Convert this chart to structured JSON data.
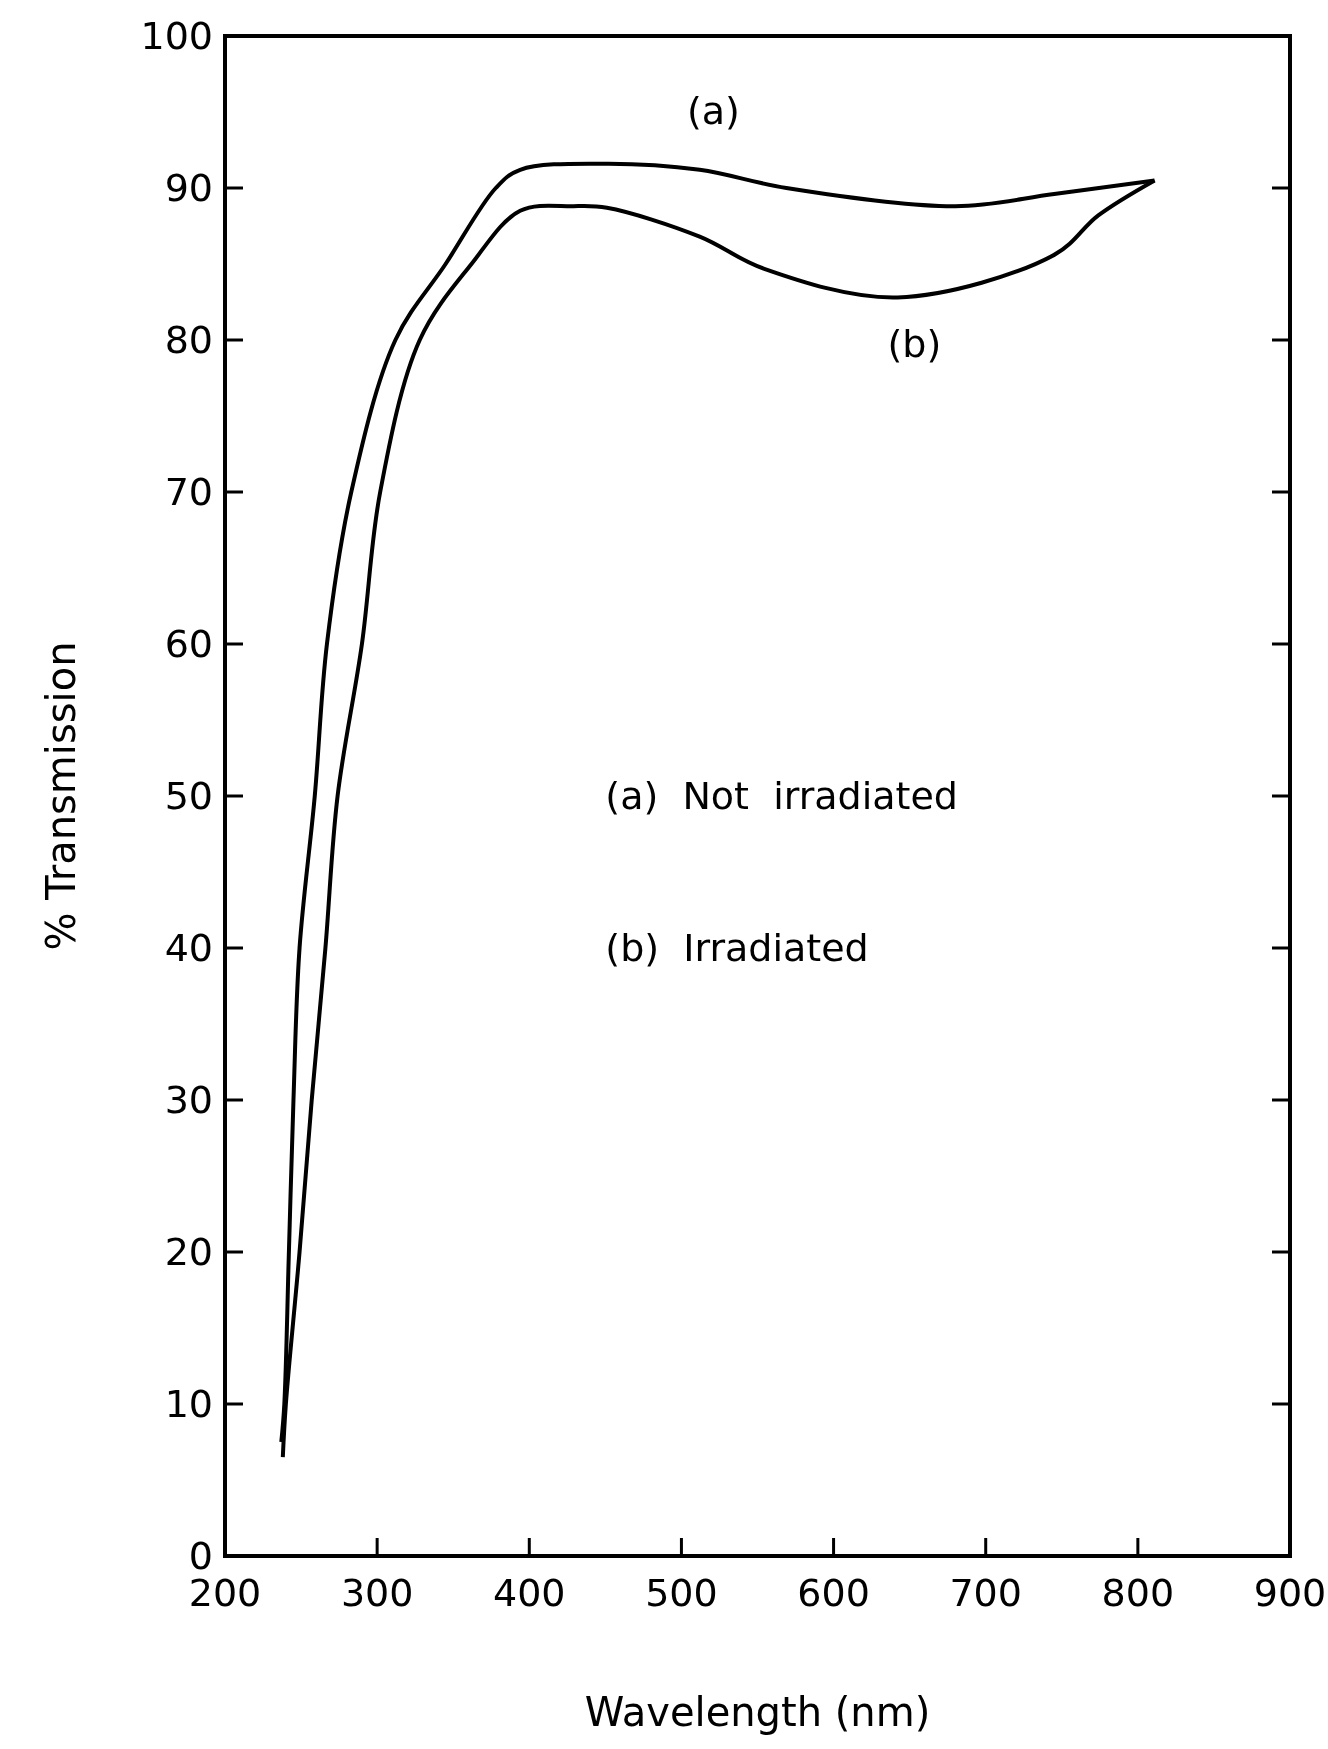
{
  "chart_data": {
    "type": "line",
    "xlabel": "Wavelength (nm)",
    "ylabel": "% Transmission",
    "xlim": [
      200,
      900
    ],
    "xticks": [
      200,
      300,
      400,
      500,
      600,
      700,
      800,
      900
    ],
    "ylim": [
      0,
      100
    ],
    "yticks": [
      0,
      10,
      20,
      30,
      40,
      50,
      60,
      70,
      80,
      90,
      100
    ],
    "grid": false,
    "marker": "none",
    "line_style": "solid",
    "series": [
      {
        "name": "(a)",
        "color": "#000000",
        "x": [
          237,
          239,
          242,
          245,
          249,
          259,
          267,
          283,
          312,
          345,
          378,
          394,
          451,
          512,
          569,
          680,
          745,
          811
        ],
        "values": [
          7.5,
          10,
          20,
          30,
          40,
          50,
          60,
          70,
          80,
          85,
          90,
          91.2,
          91.6,
          91.2,
          90,
          88.8,
          89.6,
          90.5
        ]
      },
      {
        "name": "(b)",
        "color": "#000000",
        "x": [
          238,
          240,
          249,
          257,
          266,
          274,
          290,
          302,
          328,
          362,
          394,
          429,
          451,
          512,
          554,
          642,
          745,
          774,
          811
        ],
        "values": [
          6.5,
          10,
          20,
          30,
          40,
          50,
          60,
          70,
          80,
          85,
          88.5,
          88.8,
          88.7,
          86.8,
          84.7,
          82.8,
          85.6,
          88.2,
          90.5
        ]
      }
    ],
    "annotations": [
      "(a)  Not  irradiated",
      "(b)  Irradiated"
    ]
  }
}
